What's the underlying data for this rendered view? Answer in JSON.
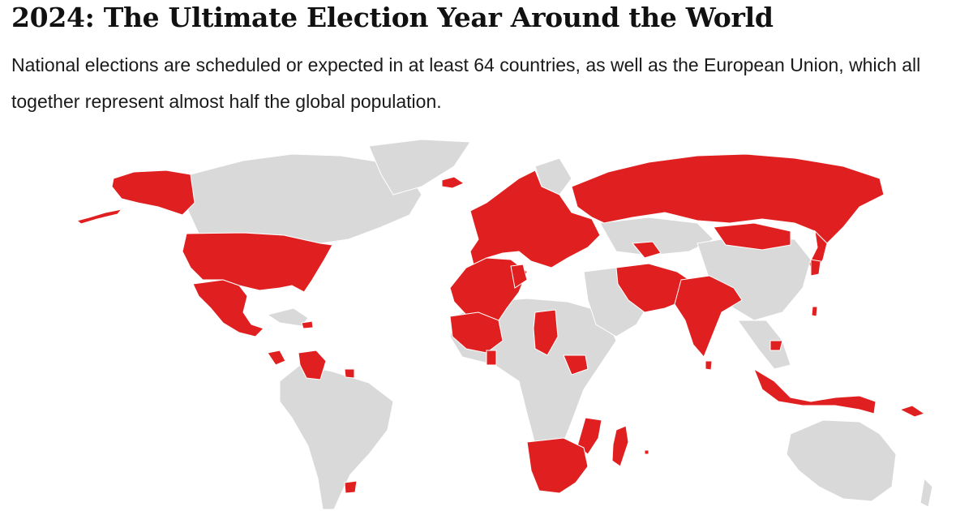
{
  "header": {
    "title": "2024: The Ultimate Election Year Around the World",
    "subtitle": "National elections are scheduled or expected in at least 64 countries, as well as the European Union, which all together represent almost half the global population."
  },
  "colors": {
    "election": "#e02020",
    "no_election": "#d9d9d9",
    "background": "#ffffff"
  }
}
